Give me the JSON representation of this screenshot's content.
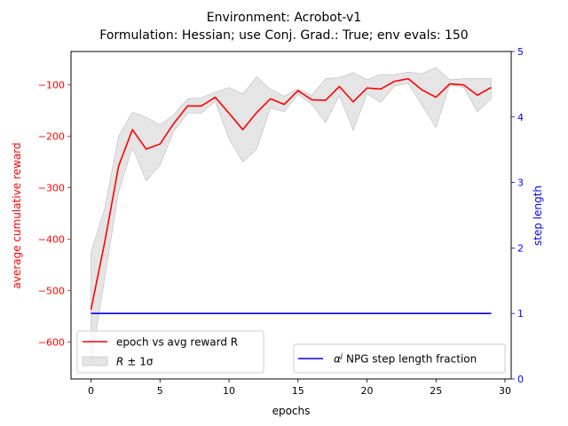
{
  "chart_data": {
    "type": "line",
    "title_line1": "Environment: Acrobot-v1",
    "title_line2": "Formulation: Hessian; use Conj. Grad.: True; env evals: 150",
    "xlabel": "epochs",
    "ylabel_left": "average cumulative reward",
    "ylabel_right": "step length",
    "xlim": [
      -1.45,
      30.45
    ],
    "ylim_left": [
      -672,
      -35
    ],
    "ylim_right": [
      0,
      5
    ],
    "x_ticks": [
      0,
      5,
      10,
      15,
      20,
      25,
      30
    ],
    "y_left_ticks": [
      -600,
      -500,
      -400,
      -300,
      -200,
      -100
    ],
    "y_right_ticks": [
      0,
      1,
      2,
      3,
      4,
      5
    ],
    "x": [
      0,
      1,
      2,
      3,
      4,
      5,
      6,
      7,
      8,
      9,
      10,
      11,
      12,
      13,
      14,
      15,
      16,
      17,
      18,
      19,
      20,
      21,
      22,
      23,
      24,
      25,
      26,
      27,
      28,
      29
    ],
    "series": [
      {
        "name": "epoch vs avg reward R",
        "axis": "left",
        "values": [
          -537,
          -405,
          -258,
          -187,
          -225,
          -215,
          -175,
          -141,
          -141,
          -124,
          -155,
          -187,
          -154,
          -127,
          -138,
          -111,
          -129,
          -130,
          -103,
          -133,
          -106,
          -108,
          -93,
          -88,
          -110,
          -124,
          -98,
          -100,
          -120,
          -105
        ]
      },
      {
        "name": "α^j NPG step length fraction",
        "axis": "right",
        "values": [
          1,
          1,
          1,
          1,
          1,
          1,
          1,
          1,
          1,
          1,
          1,
          1,
          1,
          1,
          1,
          1,
          1,
          1,
          1,
          1,
          1,
          1,
          1,
          1,
          1,
          1,
          1,
          1,
          1,
          1
        ]
      }
    ],
    "band": {
      "name": "R ± 1σ",
      "upper": [
        -425,
        -340,
        -200,
        -153,
        -163,
        -178,
        -158,
        -127,
        -125,
        -114,
        -105,
        -118,
        -84,
        -108,
        -122,
        -108,
        -120,
        -88,
        -86,
        -76,
        -90,
        -80,
        -80,
        -75,
        -78,
        -66,
        -90,
        -88,
        -88,
        -88
      ],
      "lower": [
        -645,
        -475,
        -308,
        -222,
        -287,
        -256,
        -190,
        -155,
        -155,
        -132,
        -205,
        -250,
        -225,
        -145,
        -152,
        -118,
        -138,
        -173,
        -121,
        -188,
        -117,
        -134,
        -102,
        -97,
        -140,
        -183,
        -99,
        -105,
        -152,
        -127
      ]
    },
    "legend_left": {
      "placement": "lower-left",
      "line_label": "epoch vs avg reward R",
      "band_label_main": "R",
      "band_label_tail": "± 1σ"
    },
    "legend_right": {
      "placement": "lower-right",
      "label_alpha": "α",
      "label_sup": "j",
      "label_tail": " NPG step length fraction"
    },
    "colors": {
      "reward": "#ff0000",
      "step": "#0000ff",
      "band": "#d3d3d3",
      "axis": "#000000"
    },
    "grid": false
  }
}
